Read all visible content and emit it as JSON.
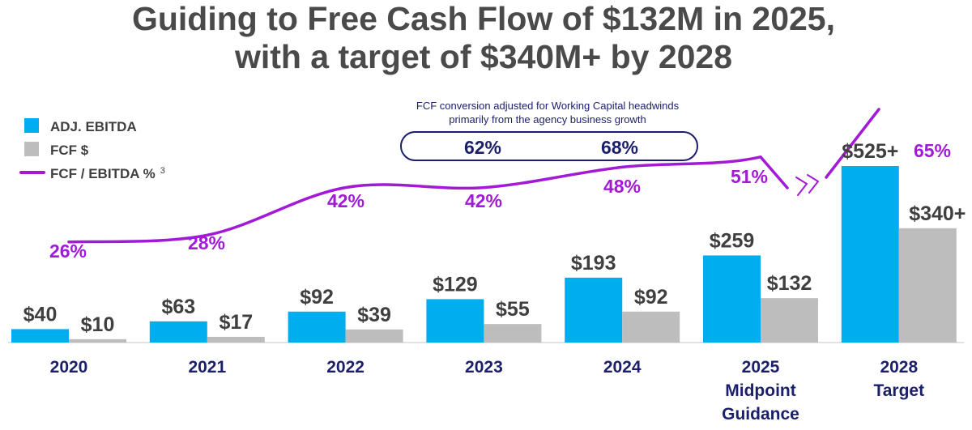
{
  "title": {
    "line1": "Guiding to Free Cash Flow of $132M in 2025,",
    "line2": "with a target of $340M+ by 2028"
  },
  "legend": {
    "ebitda": "ADJ. EBITDA",
    "fcf": "FCF $",
    "ratio": "FCF / EBITDA %",
    "ratio_footnote": "3"
  },
  "note": {
    "line1": "FCF conversion adjusted for Working Capital headwinds",
    "line2": "primarily from the agency business growth",
    "values": [
      "62%",
      "68%"
    ]
  },
  "colors": {
    "ebitda": "#00aeef",
    "fcf": "#bdbdbd",
    "ratio": "#a21ad6",
    "category": "#1b1f6b",
    "values": "#3f3f3f"
  },
  "chart_data": {
    "type": "bar",
    "title": "Guiding to Free Cash Flow of $132M in 2025, with a target of $340M+ by 2028",
    "categories": [
      [
        "2020"
      ],
      [
        "2021"
      ],
      [
        "2022"
      ],
      [
        "2023"
      ],
      [
        "2024"
      ],
      [
        "2025",
        "Midpoint",
        "Guidance"
      ],
      [
        "2028",
        "Target"
      ]
    ],
    "series": [
      {
        "name": "ADJ. EBITDA",
        "values": [
          40,
          63,
          92,
          129,
          193,
          259,
          525
        ],
        "labels": [
          "$40",
          "$63",
          "$92",
          "$129",
          "$193",
          "$259",
          "$525+"
        ]
      },
      {
        "name": "FCF $",
        "values": [
          10,
          17,
          39,
          55,
          92,
          132,
          340
        ],
        "labels": [
          "$10",
          "$17",
          "$39",
          "$55",
          "$92",
          "$132",
          "$340+"
        ]
      },
      {
        "name": "FCF / EBITDA %",
        "type": "line",
        "values": [
          26,
          28,
          42,
          42,
          48,
          51,
          65
        ],
        "labels": [
          "26%",
          "28%",
          "42%",
          "42%",
          "48%",
          "51%",
          "65%"
        ]
      }
    ],
    "ylim": [
      0,
      540
    ],
    "xlabel": "",
    "ylabel": "",
    "legend": "top-left"
  }
}
